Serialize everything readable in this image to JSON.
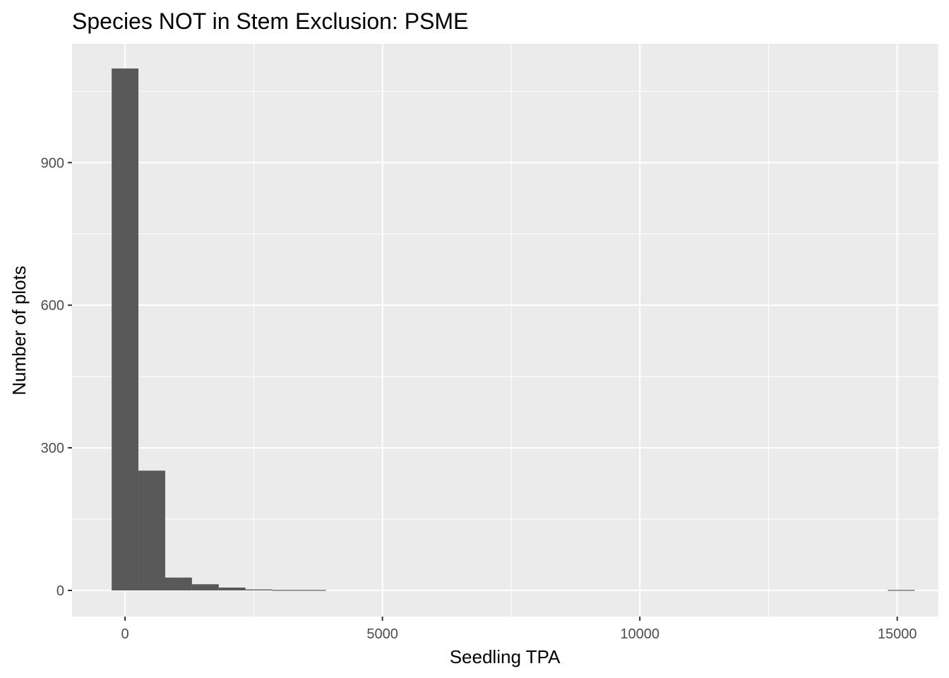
{
  "chart_data": {
    "type": "bar",
    "subtype": "histogram",
    "title": "Species NOT in Stem Exclusion: PSME",
    "xlabel": "Seedling TPA",
    "ylabel": "Number of plots",
    "xlim": [
      -1030,
      15800
    ],
    "ylim": [
      -55,
      1150
    ],
    "x_ticks": [
      0,
      5000,
      10000,
      15000
    ],
    "y_ticks": [
      0,
      300,
      600,
      900
    ],
    "x_tick_labels": [
      "0",
      "5000",
      "10000",
      "15000"
    ],
    "y_tick_labels": [
      "0",
      "300",
      "600",
      "900"
    ],
    "grid": true,
    "bin_width": 520,
    "bins": [
      {
        "x_min": -260,
        "x_max": 260,
        "count": 1098
      },
      {
        "x_min": 260,
        "x_max": 780,
        "count": 252
      },
      {
        "x_min": 780,
        "x_max": 1300,
        "count": 27
      },
      {
        "x_min": 1300,
        "x_max": 1820,
        "count": 13
      },
      {
        "x_min": 1820,
        "x_max": 2340,
        "count": 6
      },
      {
        "x_min": 2340,
        "x_max": 2860,
        "count": 2
      },
      {
        "x_min": 2860,
        "x_max": 3380,
        "count": 1
      },
      {
        "x_min": 3380,
        "x_max": 3900,
        "count": 1
      },
      {
        "x_min": 14820,
        "x_max": 15340,
        "count": 1
      }
    ],
    "colors": {
      "bar": "#595959",
      "panel": "#ebebeb",
      "grid": "#ffffff"
    }
  }
}
